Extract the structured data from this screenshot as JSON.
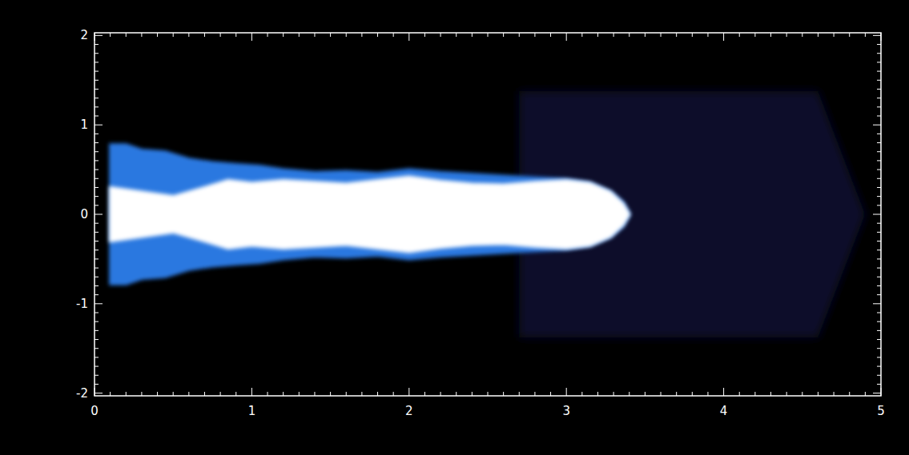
{
  "chart_data": {
    "type": "image",
    "xlim": [
      0,
      5
    ],
    "ylim": [
      -2.03,
      2.03
    ],
    "xticks": [
      0,
      1,
      2,
      3,
      4,
      5
    ],
    "yticks": [
      -2,
      -1,
      0,
      1,
      2
    ],
    "series": [
      {
        "color": "#070d2a",
        "x": [
          2.7,
          4.6,
          4.9
        ],
        "values": [
          1.38,
          1.38,
          0
        ]
      },
      {
        "color": "#2a78e0",
        "x": [
          0.1,
          0.2,
          0.3,
          0.45,
          0.6,
          0.75,
          0.9,
          1.05,
          1.2,
          1.4,
          1.6,
          1.8,
          2.0,
          2.2,
          2.4,
          2.6,
          2.8,
          3.0,
          3.15,
          3.28,
          3.36,
          3.4
        ],
        "values": [
          0.78,
          0.78,
          0.72,
          0.7,
          0.62,
          0.58,
          0.56,
          0.54,
          0.5,
          0.47,
          0.48,
          0.46,
          0.5,
          0.47,
          0.45,
          0.43,
          0.41,
          0.39,
          0.35,
          0.25,
          0.13,
          0
        ]
      },
      {
        "color": "#ffffff",
        "x": [
          0.1,
          0.3,
          0.5,
          0.7,
          0.85,
          1.0,
          1.2,
          1.4,
          1.6,
          1.8,
          2.0,
          2.2,
          2.4,
          2.6,
          2.8,
          3.0,
          3.15,
          3.28,
          3.36,
          3.4
        ],
        "values": [
          0.3,
          0.25,
          0.2,
          0.3,
          0.38,
          0.35,
          0.38,
          0.36,
          0.34,
          0.38,
          0.42,
          0.37,
          0.34,
          0.33,
          0.36,
          0.38,
          0.35,
          0.25,
          0.12,
          0
        ]
      }
    ]
  }
}
